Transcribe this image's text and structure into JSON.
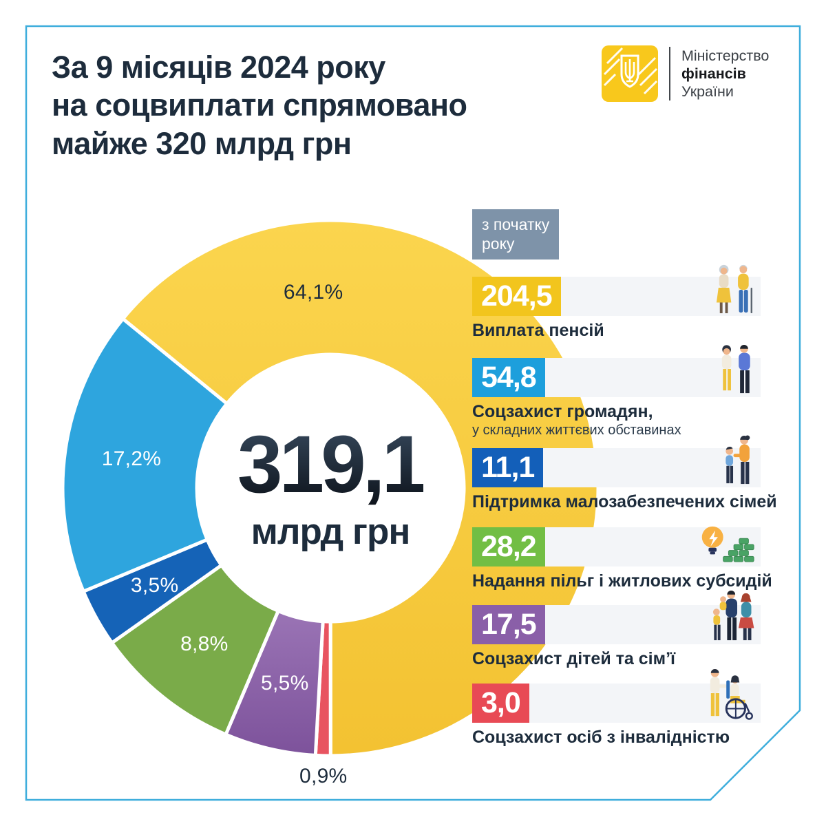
{
  "page": {
    "border_color": "#3FAEDC",
    "background": "#FFFFFF"
  },
  "header": {
    "title": "За 9 місяців 2024 року\nна соцвиплати спрямовано\nмайже 320 млрд грн"
  },
  "logo": {
    "lines": [
      "Міністерство",
      "фінансів",
      "України"
    ],
    "emblem": "ukraine-trident",
    "box_color": "#F8C81C"
  },
  "badge": {
    "text": "з початку\nроку",
    "bg": "#7E93A9"
  },
  "chart_data": {
    "type": "pie",
    "title": "За 9 місяців 2024 року на соцвиплати спрямовано майже 320 млрд грн",
    "unit": "млрд грн",
    "total_value_bln": 319.1,
    "center": {
      "value": "319,1",
      "unit": "млрд грн"
    },
    "start_angle_deg": -50.8,
    "legend_position": "right",
    "slices": [
      {
        "key": "pensions",
        "name": "Виплата пенсій",
        "value_bln": 204.5,
        "pct": 64.1,
        "label": "64,1%",
        "color": "#F8CC40",
        "gradient": [
          "#FBD54E",
          "#F3C232"
        ],
        "label_color": "#1D2C3C",
        "label_angle_deg": -5,
        "label_radius": 285
      },
      {
        "key": "disability",
        "name": "Соцзахист осіб з інвалідністю",
        "value_bln": 3.0,
        "pct": 0.9,
        "label": "0,9%",
        "color": "#E85460",
        "label_color": "#1D2C3C",
        "label_angle_deg": 181.4,
        "label_radius": 419
      },
      {
        "key": "children-families",
        "name": "Соцзахист дітей та сім’ї",
        "value_bln": 17.5,
        "pct": 5.5,
        "label": "5,5%",
        "color": "#8A61A6",
        "gradient": [
          "#9A74B5",
          "#7D529B"
        ],
        "label_color": "#FFFFFF"
      },
      {
        "key": "benefits-subsidies",
        "name": "Надання пільг і житлових субсидій",
        "value_bln": 28.2,
        "pct": 8.8,
        "label": "8,8%",
        "color": "#7AAB49",
        "label_color": "#FFFFFF"
      },
      {
        "key": "low-income-families",
        "name": "Підтримка малозабезпечених сімей",
        "value_bln": 11.1,
        "pct": 3.5,
        "label": "3,5%",
        "color": "#1563B7",
        "label_color": "#FFFFFF"
      },
      {
        "key": "citizens-difficult",
        "name": "Соцзахист громадян у складних життєвих обставинах",
        "value_bln": 54.8,
        "pct": 17.2,
        "label": "17,2%",
        "color": "#2EA5DE",
        "label_color": "#FFFFFF"
      }
    ]
  },
  "legend": {
    "items": [
      {
        "value": "204,5",
        "label": "Виплата пенсій",
        "color": "#F2C51D",
        "icon": "pensioners"
      },
      {
        "value": "54,8",
        "label": "Соцзахист громадян,",
        "sublabel": "у складних життєвих обставинах",
        "color": "#1D9FDC",
        "icon": "couple"
      },
      {
        "value": "11,1",
        "label": "Підтримка малозабезпечених сімей",
        "color": "#135FB9",
        "icon": "mother-child"
      },
      {
        "value": "28,2",
        "label": "Надання пільг і житлових субсидій",
        "color": "#72BE44",
        "icon": "bulb-money"
      },
      {
        "value": "17,5",
        "label": "Соцзахист дітей та сім’ї",
        "color": "#8A5FA8",
        "icon": "family"
      },
      {
        "value": "3,0",
        "label": "Соцзахист осіб з інвалідністю",
        "color": "#E84A55",
        "icon": "wheelchair"
      }
    ]
  }
}
